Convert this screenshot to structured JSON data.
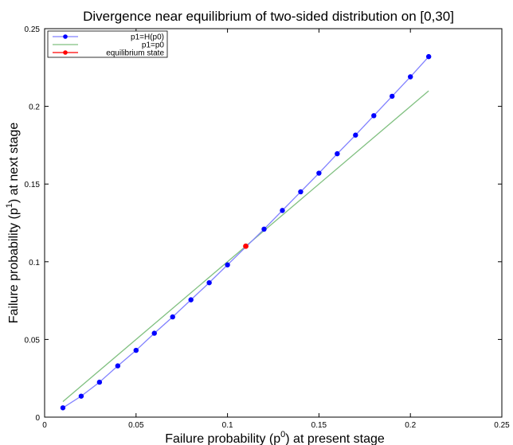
{
  "chart_data": {
    "type": "line",
    "title": "Divergence near equilibrium of two-sided distribution on [0,30]",
    "xlabel": {
      "before": "Failure probability (p",
      "sup": "0",
      "after": ") at present stage"
    },
    "ylabel": {
      "before": "Failure probability (p",
      "sup": "1",
      "after": ") at next stage"
    },
    "xlim": [
      0,
      0.25
    ],
    "ylim": [
      0,
      0.25
    ],
    "xticks": [
      0,
      0.05,
      0.1,
      0.15,
      0.2,
      0.25
    ],
    "xtick_labels": [
      "0",
      "0.05",
      "0.1",
      "0.15",
      "0.2",
      "0.25"
    ],
    "yticks": [
      0,
      0.05,
      0.1,
      0.15,
      0.2,
      0.25
    ],
    "ytick_labels": [
      "0",
      "0.05",
      "0.1",
      "0.15",
      "0.2",
      "0.25"
    ],
    "grid": false,
    "legend_position": "top-left",
    "series": [
      {
        "name": "p1=H(p0)",
        "color": "#0000ff",
        "line_color": "#8080ff",
        "marker": "circle",
        "x": [
          0.01,
          0.02,
          0.03,
          0.04,
          0.05,
          0.06,
          0.07,
          0.08,
          0.09,
          0.1,
          0.12,
          0.13,
          0.14,
          0.15,
          0.16,
          0.17,
          0.18,
          0.19,
          0.2,
          0.21
        ],
        "y": [
          0.006,
          0.0135,
          0.0225,
          0.033,
          0.043,
          0.054,
          0.0645,
          0.0755,
          0.0865,
          0.098,
          0.121,
          0.133,
          0.145,
          0.157,
          0.1695,
          0.1815,
          0.194,
          0.2065,
          0.219,
          0.232
        ]
      },
      {
        "name": "p1=p0",
        "color": "#80c080",
        "marker": "none",
        "x": [
          0.01,
          0.21
        ],
        "y": [
          0.01,
          0.21
        ]
      },
      {
        "name": "equilibrium state",
        "color": "#ff0000",
        "marker": "circle",
        "x": [
          0.11
        ],
        "y": [
          0.11
        ]
      }
    ]
  }
}
